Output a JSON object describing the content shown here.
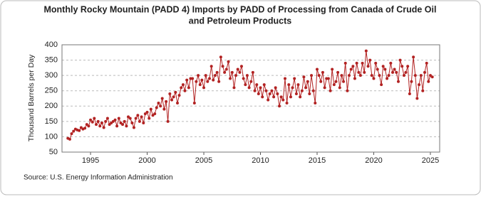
{
  "chart_data": {
    "type": "line",
    "title": [
      "Monthly Rocky Mountain (PADD 4) Imports by PADD of Processing from Canada of Crude Oil",
      "and Petroleum Products"
    ],
    "y_label": "Thousand Barrels per Day",
    "source": "Source: U.S. Energy Information Administration",
    "xlim": [
      1992.48,
      2025.82
    ],
    "ylim": [
      50,
      400
    ],
    "xticks": [
      1995,
      2000,
      2005,
      2010,
      2015,
      2020,
      2025
    ],
    "yticks": [
      50,
      100,
      150,
      200,
      250,
      300,
      350,
      400
    ],
    "grid": true,
    "markers": true,
    "x": [
      1993,
      1993.17,
      1993.33,
      1993.5,
      1993.67,
      1993.83,
      1994,
      1994.17,
      1994.33,
      1994.5,
      1994.67,
      1994.83,
      1995,
      1995.17,
      1995.33,
      1995.5,
      1995.67,
      1995.83,
      1996,
      1996.17,
      1996.33,
      1996.5,
      1996.67,
      1996.83,
      1997,
      1997.17,
      1997.33,
      1997.5,
      1997.67,
      1997.83,
      1998,
      1998.17,
      1998.33,
      1998.5,
      1998.67,
      1998.83,
      1999,
      1999.17,
      1999.33,
      1999.5,
      1999.67,
      1999.83,
      2000,
      2000.17,
      2000.33,
      2000.5,
      2000.67,
      2000.83,
      2001,
      2001.17,
      2001.33,
      2001.5,
      2001.67,
      2001.83,
      2002,
      2002.17,
      2002.33,
      2002.5,
      2002.67,
      2002.83,
      2003,
      2003.17,
      2003.33,
      2003.5,
      2003.67,
      2003.83,
      2004,
      2004.17,
      2004.33,
      2004.5,
      2004.67,
      2004.83,
      2005,
      2005.17,
      2005.33,
      2005.5,
      2005.67,
      2005.83,
      2006,
      2006.17,
      2006.33,
      2006.5,
      2006.67,
      2006.83,
      2007,
      2007.17,
      2007.33,
      2007.5,
      2007.67,
      2007.83,
      2008,
      2008.17,
      2008.33,
      2008.5,
      2008.67,
      2008.83,
      2009,
      2009.17,
      2009.33,
      2009.5,
      2009.67,
      2009.83,
      2010,
      2010.17,
      2010.33,
      2010.5,
      2010.67,
      2010.83,
      2011,
      2011.17,
      2011.33,
      2011.5,
      2011.67,
      2011.83,
      2012,
      2012.17,
      2012.33,
      2012.5,
      2012.67,
      2012.83,
      2013,
      2013.17,
      2013.33,
      2013.5,
      2013.67,
      2013.83,
      2014,
      2014.17,
      2014.33,
      2014.5,
      2014.67,
      2014.83,
      2015,
      2015.17,
      2015.33,
      2015.5,
      2015.67,
      2015.83,
      2016,
      2016.17,
      2016.33,
      2016.5,
      2016.67,
      2016.83,
      2017,
      2017.17,
      2017.33,
      2017.5,
      2017.67,
      2017.83,
      2018,
      2018.17,
      2018.33,
      2018.5,
      2018.67,
      2018.83,
      2019,
      2019.17,
      2019.33,
      2019.5,
      2019.67,
      2019.83,
      2020,
      2020.17,
      2020.33,
      2020.5,
      2020.67,
      2020.83,
      2021,
      2021.17,
      2021.33,
      2021.5,
      2021.67,
      2021.83,
      2022,
      2022.17,
      2022.33,
      2022.5,
      2022.67,
      2022.83,
      2023,
      2023.17,
      2023.33,
      2023.5,
      2023.67,
      2023.83,
      2024,
      2024.17,
      2024.33,
      2024.5,
      2024.67,
      2024.83,
      2025,
      2025.17
    ],
    "series": [
      {
        "color": "#b22222",
        "values": [
          95,
          92,
          110,
          118,
          125,
          122,
          120,
          130,
          125,
          128,
          140,
          135,
          155,
          148,
          160,
          140,
          150,
          135,
          145,
          130,
          150,
          160,
          140,
          145,
          150,
          155,
          135,
          160,
          145,
          140,
          150,
          135,
          165,
          160,
          145,
          130,
          160,
          170,
          150,
          165,
          145,
          175,
          180,
          160,
          190,
          170,
          175,
          195,
          210,
          200,
          225,
          190,
          215,
          150,
          240,
          220,
          230,
          245,
          210,
          235,
          260,
          270,
          250,
          285,
          260,
          290,
          290,
          210,
          280,
          300,
          270,
          285,
          260,
          300,
          280,
          290,
          330,
          285,
          300,
          310,
          280,
          360,
          330,
          310,
          320,
          345,
          290,
          310,
          260,
          300,
          320,
          310,
          330,
          290,
          270,
          300,
          260,
          280,
          310,
          250,
          270,
          240,
          260,
          230,
          270,
          250,
          220,
          240,
          250,
          230,
          260,
          240,
          200,
          230,
          220,
          290,
          210,
          270,
          230,
          260,
          290,
          240,
          270,
          230,
          250,
          295,
          260,
          280,
          240,
          300,
          250,
          210,
          320,
          300,
          280,
          310,
          260,
          290,
          290,
          250,
          320,
          270,
          280,
          310,
          260,
          300,
          280,
          340,
          250,
          300,
          320,
          330,
          290,
          340,
          310,
          300,
          340,
          310,
          380,
          330,
          350,
          300,
          290,
          340,
          320,
          300,
          270,
          330,
          320,
          290,
          300,
          340,
          310,
          320,
          310,
          280,
          350,
          330,
          300,
          310,
          330,
          240,
          280,
          360,
          300,
          225,
          270,
          300,
          250,
          310,
          340,
          280,
          300,
          295
        ]
      }
    ]
  }
}
